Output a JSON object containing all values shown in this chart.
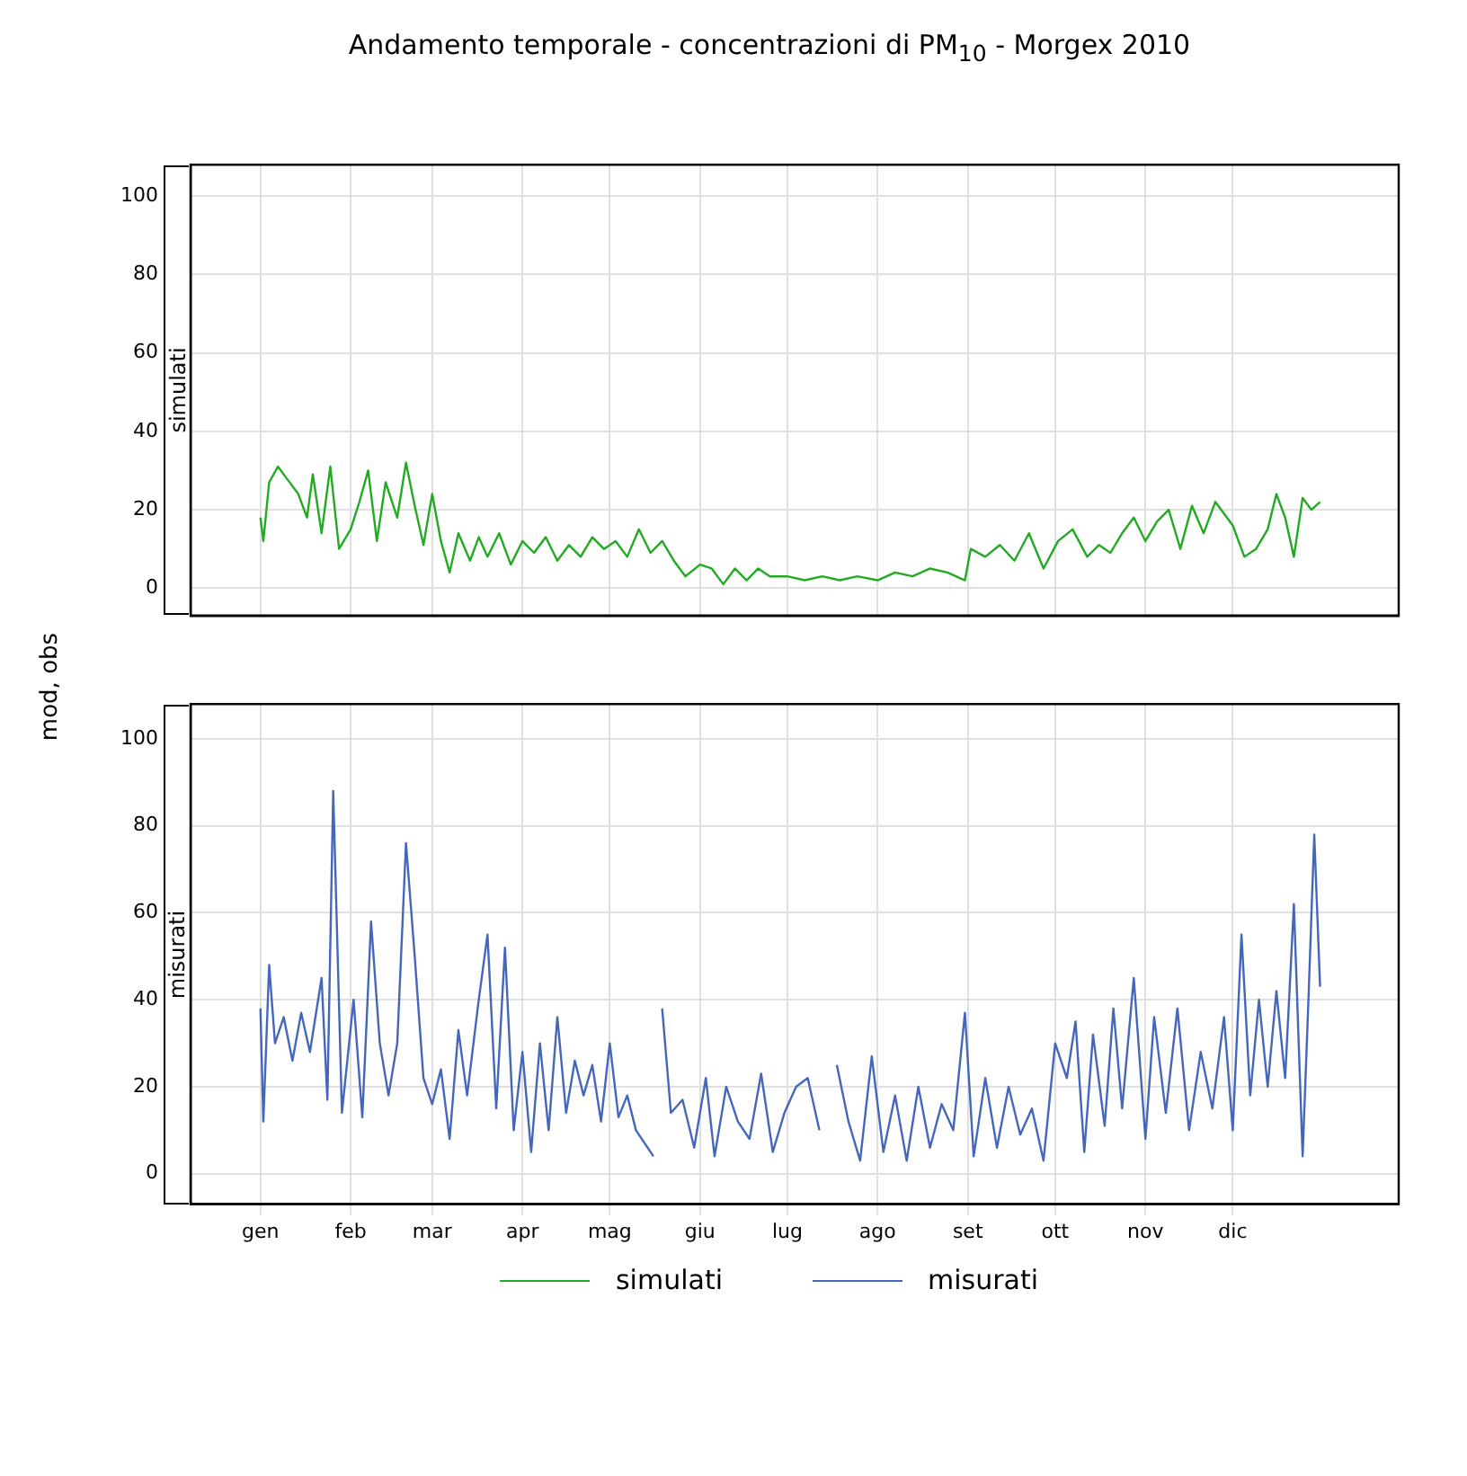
{
  "chart_data": [
    {
      "type": "line",
      "title": "Andamento temporale - concentrazioni di PM$_{10}$ - Morgex 2010",
      "ylabel": "mod, obs",
      "tick_labels": "y",
      "xlim": [
        "2009-12-08",
        "2011-01-27"
      ],
      "xticks": [
        {
          "value": "2010-01-01",
          "label": null
        },
        {
          "value": "2010-02-01",
          "label": null
        },
        {
          "value": "2010-03-01",
          "label": null
        },
        {
          "value": "2010-04-01",
          "label": null
        },
        {
          "value": "2010-05-01",
          "label": null
        },
        {
          "value": "2010-06-01",
          "label": null
        },
        {
          "value": "2010-07-01",
          "label": null
        },
        {
          "value": "2010-08-01",
          "label": null
        },
        {
          "value": "2010-09-01",
          "label": null
        },
        {
          "value": "2010-10-01",
          "label": null
        },
        {
          "value": "2010-11-01",
          "label": null
        },
        {
          "value": "2010-12-01",
          "label": null
        }
      ],
      "ylim": [
        -7,
        108
      ],
      "yticks": [
        0,
        20,
        40,
        60,
        80,
        100
      ],
      "grid": true,
      "marker": "none",
      "line_style": "solid",
      "series": [
        {
          "name": "simulati",
          "color": "#22aa22",
          "x": [
            "2010-01-01",
            "2010-01-02",
            "2010-01-04",
            "2010-01-07",
            "2010-01-10",
            "2010-01-14",
            "2010-01-17",
            "2010-01-19",
            "2010-01-22",
            "2010-01-25",
            "2010-01-28",
            "2010-02-01",
            "2010-02-04",
            "2010-02-07",
            "2010-02-10",
            "2010-02-13",
            "2010-02-17",
            "2010-02-20",
            "2010-02-23",
            "2010-02-26",
            "2010-03-01",
            "2010-03-04",
            "2010-03-07",
            "2010-03-10",
            "2010-03-14",
            "2010-03-17",
            "2010-03-20",
            "2010-03-24",
            "2010-03-28",
            "2010-04-01",
            "2010-04-05",
            "2010-04-09",
            "2010-04-13",
            "2010-04-17",
            "2010-04-21",
            "2010-04-25",
            "2010-04-29",
            "2010-05-03",
            "2010-05-07",
            "2010-05-11",
            "2010-05-15",
            "2010-05-19",
            "2010-05-23",
            "2010-05-27",
            "2010-06-01",
            "2010-06-05",
            "2010-06-09",
            "2010-06-13",
            "2010-06-17",
            "2010-06-21",
            "2010-06-25",
            "2010-07-01",
            "2010-07-07",
            "2010-07-13",
            "2010-07-19",
            "2010-07-25",
            "2010-08-01",
            "2010-08-07",
            "2010-08-13",
            "2010-08-19",
            "2010-08-25",
            "2010-08-31",
            "2010-09-02",
            "2010-09-07",
            "2010-09-12",
            "2010-09-17",
            "2010-09-22",
            "2010-09-27",
            "2010-10-02",
            "2010-10-07",
            "2010-10-12",
            "2010-10-16",
            "2010-10-20",
            "2010-10-24",
            "2010-10-28",
            "2010-11-01",
            "2010-11-05",
            "2010-11-09",
            "2010-11-13",
            "2010-11-17",
            "2010-11-21",
            "2010-11-25",
            "2010-12-01",
            "2010-12-05",
            "2010-12-09",
            "2010-12-13",
            "2010-12-16",
            "2010-12-19",
            "2010-12-22",
            "2010-12-25",
            "2010-12-28",
            "2010-12-31"
          ],
          "values": [
            18,
            12,
            27,
            31,
            28,
            24,
            18,
            29,
            14,
            31,
            10,
            15,
            22,
            30,
            12,
            27,
            18,
            32,
            21,
            11,
            24,
            12,
            4,
            14,
            7,
            13,
            8,
            14,
            6,
            12,
            9,
            13,
            7,
            11,
            8,
            13,
            10,
            12,
            8,
            15,
            9,
            12,
            7,
            3,
            6,
            5,
            1,
            5,
            2,
            5,
            3,
            3,
            2,
            3,
            2,
            3,
            2,
            4,
            3,
            5,
            4,
            2,
            10,
            8,
            11,
            7,
            14,
            5,
            12,
            15,
            8,
            11,
            9,
            14,
            18,
            12,
            17,
            20,
            10,
            21,
            14,
            22,
            16,
            8,
            10,
            15,
            24,
            18,
            8,
            23,
            20,
            22
          ]
        }
      ]
    },
    {
      "type": "line",
      "legend": "bottom",
      "xlim": [
        "2009-12-08",
        "2011-01-27"
      ],
      "xticks": [
        {
          "value": "2010-01-01",
          "label": "gen"
        },
        {
          "value": "2010-02-01",
          "label": "feb"
        },
        {
          "value": "2010-03-01",
          "label": "mar"
        },
        {
          "value": "2010-04-01",
          "label": "apr"
        },
        {
          "value": "2010-05-01",
          "label": "mag"
        },
        {
          "value": "2010-06-01",
          "label": "giu"
        },
        {
          "value": "2010-07-01",
          "label": "lug"
        },
        {
          "value": "2010-08-01",
          "label": "ago"
        },
        {
          "value": "2010-09-01",
          "label": "set"
        },
        {
          "value": "2010-10-01",
          "label": "ott"
        },
        {
          "value": "2010-11-01",
          "label": "nov"
        },
        {
          "value": "2010-12-01",
          "label": "dic"
        }
      ],
      "ylim": [
        -7,
        108
      ],
      "yticks": [
        0,
        20,
        40,
        60,
        80,
        100
      ],
      "grid": true,
      "marker": "none",
      "line_style": "solid",
      "series": [
        {
          "name": "misurati",
          "color": "#4466bb",
          "x": [
            "2010-01-01",
            "2010-01-02",
            "2010-01-04",
            "2010-01-06",
            "2010-01-09",
            "2010-01-12",
            "2010-01-15",
            "2010-01-18",
            "2010-01-22",
            "2010-01-24",
            "2010-01-26",
            "2010-01-29",
            "2010-02-02",
            "2010-02-05",
            "2010-02-08",
            "2010-02-11",
            "2010-02-14",
            "2010-02-17",
            "2010-02-20",
            "2010-02-23",
            "2010-02-26",
            "2010-03-01",
            "2010-03-04",
            "2010-03-07",
            "2010-03-10",
            "2010-03-13",
            "2010-03-17",
            "2010-03-20",
            "2010-03-23",
            "2010-03-26",
            "2010-03-29",
            "2010-04-01",
            "2010-04-04",
            "2010-04-07",
            "2010-04-10",
            "2010-04-13",
            "2010-04-16",
            "2010-04-19",
            "2010-04-22",
            "2010-04-25",
            "2010-04-28",
            "2010-05-01",
            "2010-05-04",
            "2010-05-07",
            "2010-05-10",
            "2010-05-13",
            "2010-05-16",
            "2010-05-17",
            "2010-05-19",
            "2010-05-22",
            "2010-05-26",
            "2010-05-30",
            "2010-06-03",
            "2010-06-06",
            "2010-06-10",
            "2010-06-14",
            "2010-06-18",
            "2010-06-22",
            "2010-06-26",
            "2010-06-30",
            "2010-07-04",
            "2010-07-08",
            "2010-07-12",
            "2010-07-15",
            "2010-07-18",
            "2010-07-22",
            "2010-07-26",
            "2010-07-30",
            "2010-08-03",
            "2010-08-07",
            "2010-08-11",
            "2010-08-15",
            "2010-08-19",
            "2010-08-23",
            "2010-08-27",
            "2010-08-31",
            "2010-09-03",
            "2010-09-07",
            "2010-09-11",
            "2010-09-15",
            "2010-09-19",
            "2010-09-23",
            "2010-09-27",
            "2010-10-01",
            "2010-10-05",
            "2010-10-08",
            "2010-10-11",
            "2010-10-14",
            "2010-10-18",
            "2010-10-21",
            "2010-10-24",
            "2010-10-28",
            "2010-11-01",
            "2010-11-04",
            "2010-11-08",
            "2010-11-12",
            "2010-11-16",
            "2010-11-20",
            "2010-11-24",
            "2010-11-28",
            "2010-12-01",
            "2010-12-04",
            "2010-12-07",
            "2010-12-10",
            "2010-12-13",
            "2010-12-16",
            "2010-12-19",
            "2010-12-22",
            "2010-12-25",
            "2010-12-27",
            "2010-12-29",
            "2010-12-31"
          ],
          "values": [
            38,
            12,
            48,
            30,
            36,
            26,
            37,
            28,
            45,
            17,
            88,
            14,
            40,
            13,
            58,
            30,
            18,
            30,
            76,
            50,
            22,
            16,
            24,
            8,
            33,
            18,
            40,
            55,
            15,
            52,
            10,
            28,
            5,
            30,
            10,
            36,
            14,
            26,
            18,
            25,
            12,
            30,
            13,
            18,
            10,
            7,
            4,
            null,
            38,
            14,
            17,
            6,
            22,
            4,
            20,
            12,
            8,
            23,
            5,
            14,
            20,
            22,
            10,
            null,
            25,
            12,
            3,
            27,
            5,
            18,
            3,
            20,
            6,
            16,
            10,
            37,
            4,
            22,
            6,
            20,
            9,
            15,
            3,
            30,
            22,
            35,
            5,
            32,
            11,
            38,
            15,
            45,
            8,
            36,
            14,
            38,
            10,
            28,
            15,
            36,
            10,
            55,
            18,
            40,
            20,
            42,
            22,
            62,
            4,
            40,
            78,
            43
          ]
        }
      ]
    }
  ]
}
